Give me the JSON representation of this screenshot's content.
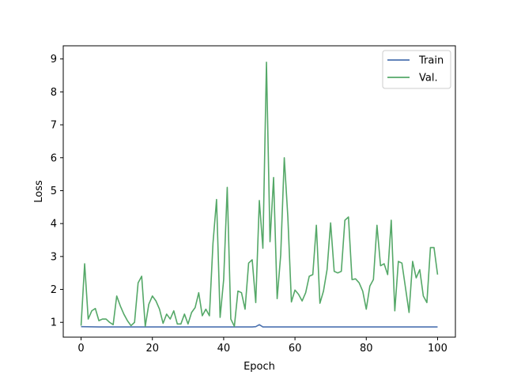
{
  "chart_data": {
    "type": "line",
    "title": "",
    "xlabel": "Epoch",
    "ylabel": "Loss",
    "xlim": [
      -5,
      105
    ],
    "ylim": [
      0.55,
      9.4
    ],
    "xticks": [
      0,
      20,
      40,
      60,
      80,
      100
    ],
    "yticks": [
      1,
      2,
      3,
      4,
      5,
      6,
      7,
      8,
      9
    ],
    "grid": false,
    "legend_position": "top-right",
    "series": [
      {
        "name": "Train",
        "color": "#4c72b0",
        "x": [
          0,
          5,
          10,
          20,
          30,
          40,
          48,
          49,
          50,
          51,
          60,
          70,
          80,
          90,
          100
        ],
        "y": [
          0.87,
          0.86,
          0.86,
          0.86,
          0.86,
          0.86,
          0.86,
          0.87,
          0.93,
          0.86,
          0.86,
          0.86,
          0.86,
          0.86,
          0.86
        ]
      },
      {
        "name": "Val.",
        "color": "#55a868",
        "x": [
          0,
          1,
          2,
          3,
          4,
          5,
          6,
          7,
          8,
          9,
          10,
          11,
          12,
          13,
          14,
          15,
          16,
          17,
          18,
          19,
          20,
          21,
          22,
          23,
          24,
          25,
          26,
          27,
          28,
          29,
          30,
          31,
          32,
          33,
          34,
          35,
          36,
          37,
          38,
          39,
          40,
          41,
          42,
          43,
          44,
          45,
          46,
          47,
          48,
          49,
          50,
          51,
          52,
          53,
          54,
          55,
          56,
          57,
          58,
          59,
          60,
          61,
          62,
          63,
          64,
          65,
          66,
          67,
          68,
          69,
          70,
          71,
          72,
          73,
          74,
          75,
          76,
          77,
          78,
          79,
          80,
          81,
          82,
          83,
          84,
          85,
          86,
          87,
          88,
          89,
          90,
          91,
          92,
          93,
          94,
          95,
          96,
          97,
          98,
          99,
          100
        ],
        "y": [
          0.9,
          2.78,
          1.1,
          1.35,
          1.42,
          1.05,
          1.1,
          1.1,
          1.0,
          0.93,
          1.8,
          1.5,
          1.25,
          1.05,
          0.9,
          1.0,
          2.2,
          2.4,
          0.88,
          1.55,
          1.8,
          1.65,
          1.4,
          0.97,
          1.25,
          1.1,
          1.35,
          0.95,
          0.95,
          1.25,
          0.95,
          1.3,
          1.45,
          1.9,
          1.2,
          1.4,
          1.2,
          3.4,
          4.73,
          1.15,
          2.3,
          5.1,
          1.1,
          0.88,
          1.95,
          1.9,
          1.4,
          2.8,
          2.9,
          1.6,
          4.7,
          3.25,
          8.9,
          3.45,
          5.4,
          1.72,
          3.05,
          6.0,
          4.2,
          1.62,
          1.98,
          1.85,
          1.65,
          1.9,
          2.4,
          2.45,
          3.95,
          1.58,
          1.95,
          2.6,
          4.02,
          2.55,
          2.5,
          2.55,
          4.1,
          4.2,
          2.3,
          2.32,
          2.2,
          1.95,
          1.4,
          2.1,
          2.3,
          3.95,
          2.72,
          2.78,
          2.45,
          4.1,
          1.35,
          2.85,
          2.8,
          2.05,
          1.3,
          2.85,
          2.35,
          2.6,
          1.8,
          1.6,
          3.27,
          3.27,
          2.45
        ]
      }
    ]
  }
}
